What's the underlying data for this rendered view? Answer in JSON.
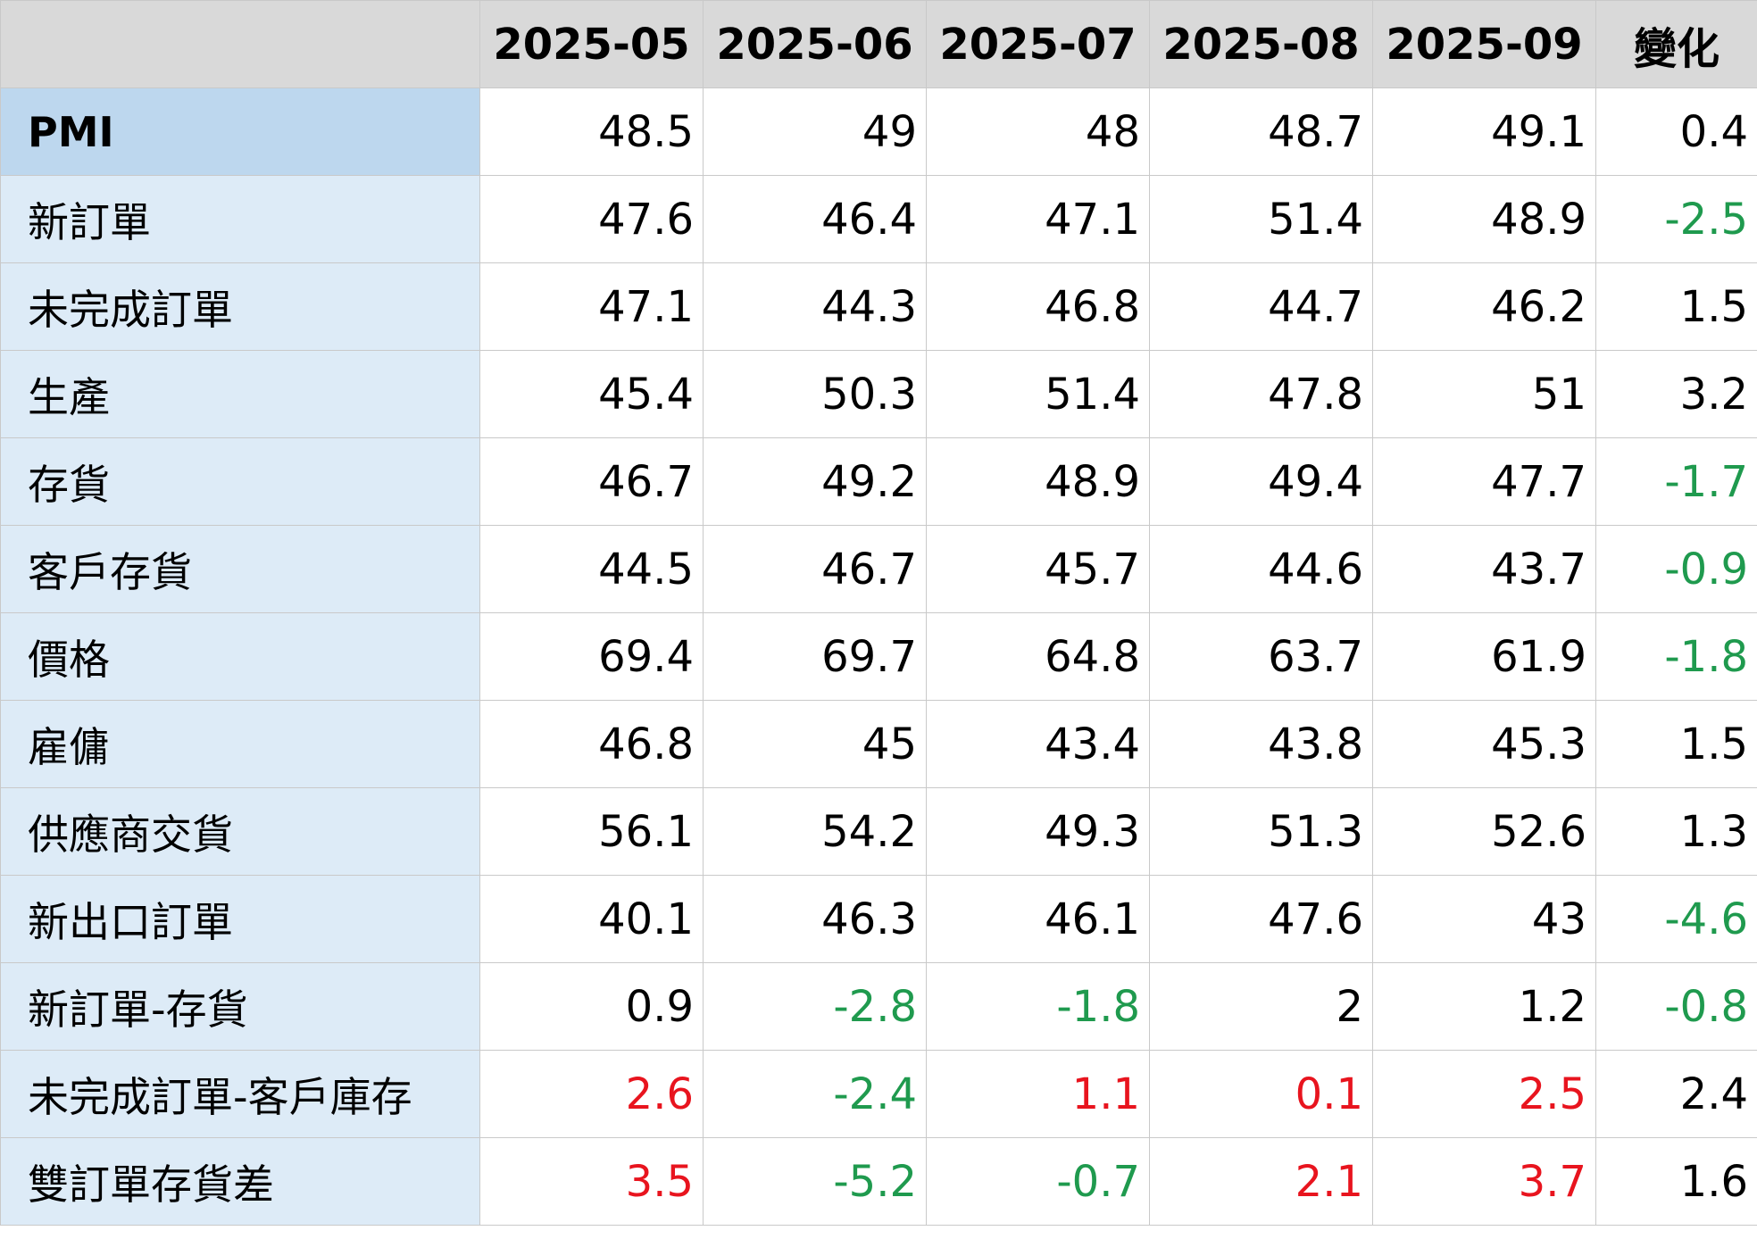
{
  "table": {
    "columns": [
      "2025-05",
      "2025-06",
      "2025-07",
      "2025-08",
      "2025-09",
      "變化"
    ],
    "rows": [
      {
        "label": "PMI",
        "values": [
          48.5,
          49,
          48,
          48.7,
          49.1,
          0.4
        ],
        "colors": [
          "#000000",
          "#000000",
          "#000000",
          "#000000",
          "#000000",
          "#000000"
        ]
      },
      {
        "label": "新訂單",
        "values": [
          47.6,
          46.4,
          47.1,
          51.4,
          48.9,
          -2.5
        ],
        "colors": [
          "#000000",
          "#000000",
          "#000000",
          "#000000",
          "#000000",
          "#1f9a4e"
        ]
      },
      {
        "label": "未完成訂單",
        "values": [
          47.1,
          44.3,
          46.8,
          44.7,
          46.2,
          1.5
        ],
        "colors": [
          "#000000",
          "#000000",
          "#000000",
          "#000000",
          "#000000",
          "#000000"
        ]
      },
      {
        "label": "生產",
        "values": [
          45.4,
          50.3,
          51.4,
          47.8,
          51,
          3.2
        ],
        "colors": [
          "#000000",
          "#000000",
          "#000000",
          "#000000",
          "#000000",
          "#000000"
        ]
      },
      {
        "label": "存貨",
        "values": [
          46.7,
          49.2,
          48.9,
          49.4,
          47.7,
          -1.7
        ],
        "colors": [
          "#000000",
          "#000000",
          "#000000",
          "#000000",
          "#000000",
          "#1f9a4e"
        ]
      },
      {
        "label": "客戶存貨",
        "values": [
          44.5,
          46.7,
          45.7,
          44.6,
          43.7,
          -0.9
        ],
        "colors": [
          "#000000",
          "#000000",
          "#000000",
          "#000000",
          "#000000",
          "#1f9a4e"
        ]
      },
      {
        "label": "價格",
        "values": [
          69.4,
          69.7,
          64.8,
          63.7,
          61.9,
          -1.8
        ],
        "colors": [
          "#000000",
          "#000000",
          "#000000",
          "#000000",
          "#000000",
          "#1f9a4e"
        ]
      },
      {
        "label": "雇傭",
        "values": [
          46.8,
          45,
          43.4,
          43.8,
          45.3,
          1.5
        ],
        "colors": [
          "#000000",
          "#000000",
          "#000000",
          "#000000",
          "#000000",
          "#000000"
        ]
      },
      {
        "label": "供應商交貨",
        "values": [
          56.1,
          54.2,
          49.3,
          51.3,
          52.6,
          1.3
        ],
        "colors": [
          "#000000",
          "#000000",
          "#000000",
          "#000000",
          "#000000",
          "#000000"
        ]
      },
      {
        "label": "新出口訂單",
        "values": [
          40.1,
          46.3,
          46.1,
          47.6,
          43,
          -4.6
        ],
        "colors": [
          "#000000",
          "#000000",
          "#000000",
          "#000000",
          "#000000",
          "#1f9a4e"
        ]
      },
      {
        "label": "新訂單-存貨",
        "values": [
          0.9,
          -2.8,
          -1.8,
          2,
          1.2,
          -0.8
        ],
        "colors": [
          "#000000",
          "#1f9a4e",
          "#1f9a4e",
          "#000000",
          "#000000",
          "#1f9a4e"
        ]
      },
      {
        "label": "未完成訂單-客戶庫存",
        "values": [
          2.6,
          -2.4,
          1.1,
          0.1,
          2.5,
          2.4
        ],
        "colors": [
          "#e8141e",
          "#1f9a4e",
          "#e8141e",
          "#e8141e",
          "#e8141e",
          "#000000"
        ]
      },
      {
        "label": "雙訂單存貨差",
        "values": [
          3.5,
          -5.2,
          -0.7,
          2.1,
          3.7,
          1.6
        ],
        "colors": [
          "#e8141e",
          "#1f9a4e",
          "#1f9a4e",
          "#e8141e",
          "#e8141e",
          "#000000"
        ]
      }
    ]
  }
}
